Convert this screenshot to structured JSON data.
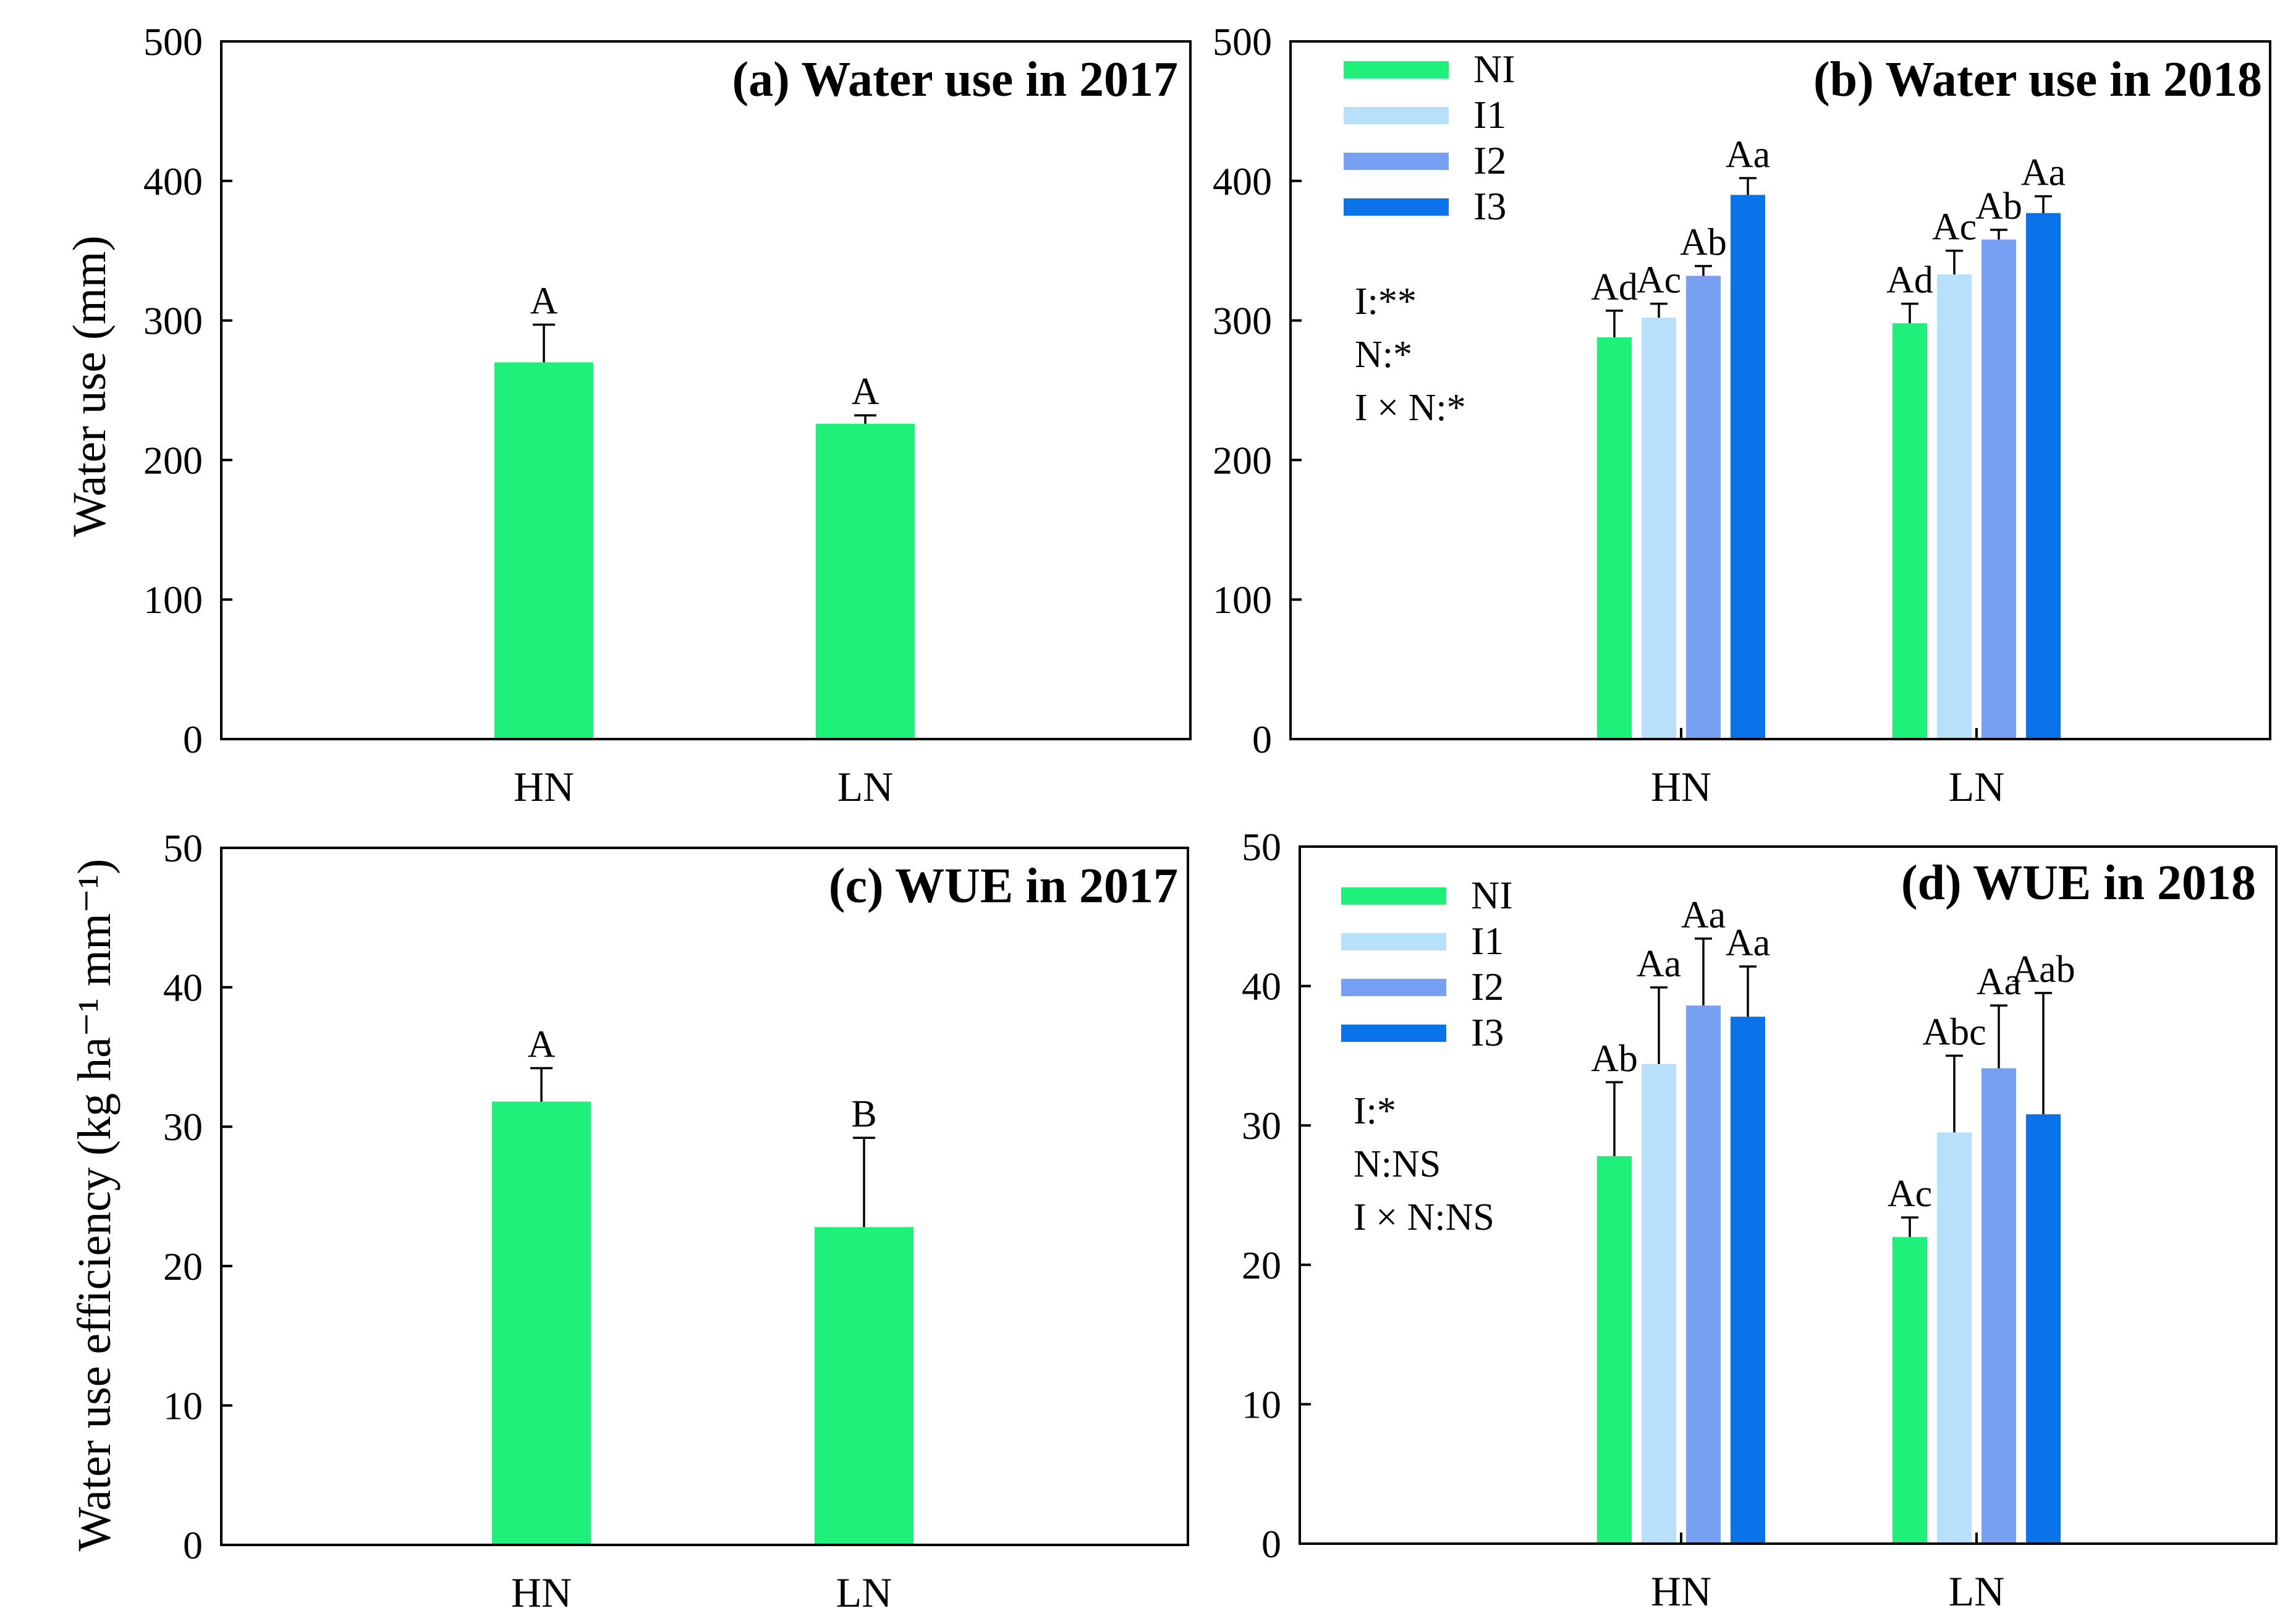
{
  "figure": {
    "ylabel_top": "Water use (mm)",
    "ylabel_bottom": "Water use efficiency (kg ha⁻¹ mm⁻¹)"
  },
  "colors": {
    "NI": "#1ef07a",
    "I1": "#b9e0fa",
    "I2": "#78a0f2",
    "I3": "#0a73ea"
  },
  "chart_data": [
    {
      "id": "a",
      "type": "bar",
      "title": "(a) Water use in 2017",
      "xlabel": "",
      "ylabel": "Water use (mm)",
      "ylim": [
        0,
        500
      ],
      "yticks": [
        0,
        100,
        200,
        300,
        400,
        500
      ],
      "categories": [
        "HN",
        "LN"
      ],
      "series": [
        {
          "name": "NI",
          "values": [
            270,
            226
          ],
          "errors": [
            27,
            6
          ],
          "letters": [
            "A",
            "A"
          ]
        }
      ],
      "legend": null,
      "stats": []
    },
    {
      "id": "b",
      "type": "bar",
      "title": "(b) Water use in 2018",
      "xlabel": "",
      "ylabel": "Water use (mm)",
      "ylim": [
        0,
        500
      ],
      "yticks": [
        0,
        100,
        200,
        300,
        400,
        500
      ],
      "categories": [
        "HN",
        "LN"
      ],
      "series": [
        {
          "name": "NI",
          "values": [
            288,
            298
          ],
          "errors": [
            19,
            14
          ],
          "letters": [
            "Ad",
            "Ad"
          ]
        },
        {
          "name": "I1",
          "values": [
            302,
            333
          ],
          "errors": [
            10,
            17
          ],
          "letters": [
            "Ac",
            "Ac"
          ]
        },
        {
          "name": "I2",
          "values": [
            332,
            358
          ],
          "errors": [
            7,
            7
          ],
          "letters": [
            "Ab",
            "Ab"
          ]
        },
        {
          "name": "I3",
          "values": [
            390,
            377
          ],
          "errors": [
            12,
            12
          ],
          "letters": [
            "Aa",
            "Aa"
          ]
        }
      ],
      "legend": "top-left",
      "stats": [
        "I:**",
        "N:*",
        "I ×  N:*"
      ]
    },
    {
      "id": "c",
      "type": "bar",
      "title": "(c) WUE in 2017",
      "xlabel": "",
      "ylabel": "Water use efficiency (kg ha⁻¹ mm⁻¹)",
      "ylim": [
        0,
        50
      ],
      "yticks": [
        0,
        10,
        20,
        30,
        40,
        50
      ],
      "categories": [
        "HN",
        "LN"
      ],
      "series": [
        {
          "name": "NI",
          "values": [
            31.8,
            22.8
          ],
          "errors": [
            2.4,
            6.4
          ],
          "letters": [
            "A",
            "B"
          ]
        }
      ],
      "legend": null,
      "stats": []
    },
    {
      "id": "d",
      "type": "bar",
      "title": "(d) WUE in 2018",
      "xlabel": "",
      "ylabel": "Water use efficiency (kg ha⁻¹ mm⁻¹)",
      "ylim": [
        0,
        50
      ],
      "yticks": [
        0,
        10,
        20,
        30,
        40,
        50
      ],
      "categories": [
        "HN",
        "LN"
      ],
      "series": [
        {
          "name": "NI",
          "values": [
            27.8,
            22.0
          ],
          "errors": [
            5.3,
            1.4
          ],
          "letters": [
            "Ab",
            "Ac"
          ]
        },
        {
          "name": "I1",
          "values": [
            34.4,
            29.5
          ],
          "errors": [
            5.5,
            5.5
          ],
          "letters": [
            "Aa",
            "Abc"
          ]
        },
        {
          "name": "I2",
          "values": [
            38.6,
            34.1
          ],
          "errors": [
            4.8,
            4.5
          ],
          "letters": [
            "Aa",
            "Aa"
          ]
        },
        {
          "name": "I3",
          "values": [
            37.8,
            30.8
          ],
          "errors": [
            3.6,
            8.7
          ],
          "letters": [
            "Aa",
            "Aab"
          ]
        }
      ],
      "legend": "top-left",
      "stats": [
        "I:*",
        "N:NS",
        "I ×  N:NS"
      ]
    }
  ]
}
